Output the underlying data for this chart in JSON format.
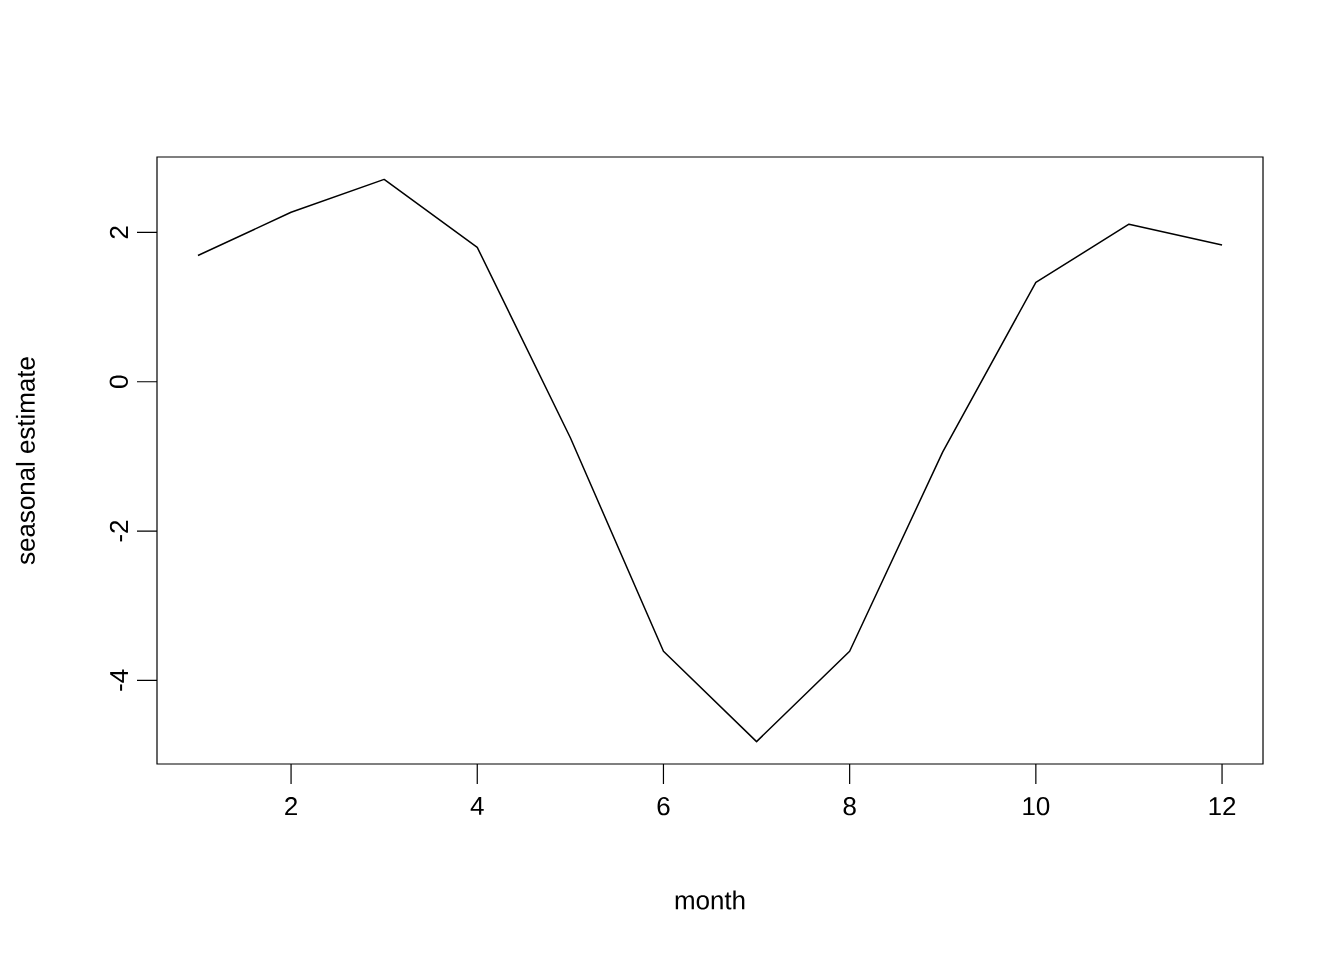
{
  "chart_data": {
    "type": "line",
    "xlabel": "month",
    "ylabel": "seasonal estimate",
    "x": [
      1,
      2,
      3,
      4,
      5,
      6,
      7,
      8,
      9,
      10,
      11,
      12
    ],
    "series": [
      {
        "color": "#000000",
        "values": [
          1.69,
          2.27,
          2.71,
          1.8,
          -0.75,
          -3.61,
          -4.82,
          -3.61,
          -0.94,
          1.33,
          2.11,
          1.83
        ]
      }
    ],
    "xlim": [
      0.56,
      12.44
    ],
    "ylim": [
      -5.12,
      3.01
    ],
    "xticks": [
      2,
      4,
      6,
      8,
      10,
      12
    ],
    "yticks": [
      -4,
      -2,
      0,
      2
    ],
    "marker": "none",
    "line_style": "solid"
  }
}
